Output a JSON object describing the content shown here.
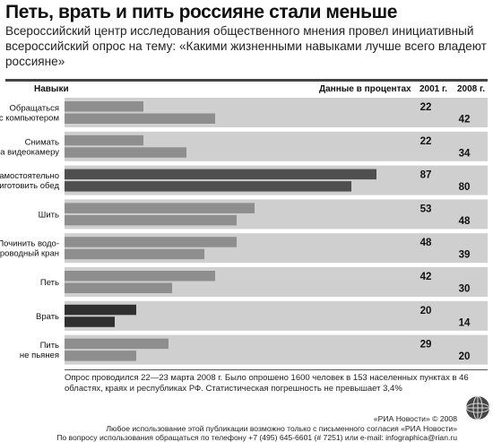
{
  "title": "Петь, врать и пить россияне стали меньше",
  "subtitle": "Всероссийский центр исследования общественного мнения провел инициативный всероссийский опрос на тему: «Какими жизненными навыками лучше всего владеют россияне»",
  "headers": {
    "skills": "Навыки",
    "data": "Данные в процентах",
    "year1": "2001 г.",
    "year2": "2008 г."
  },
  "chart_data": {
    "type": "bar",
    "orientation": "horizontal",
    "xlim": [
      0,
      100
    ],
    "categories": [
      [
        "Обращаться",
        "с компьютером"
      ],
      [
        "Снимать",
        "на видеокамеру"
      ],
      [
        "Самостоятельно",
        "приготовить обед"
      ],
      [
        "Шить"
      ],
      [
        "Починить водо-",
        "проводный кран"
      ],
      [
        "Петь"
      ],
      [
        "Врать"
      ],
      [
        "Пить",
        "не пьянея"
      ]
    ],
    "series": [
      {
        "name": "2001 г.",
        "values": [
          22,
          22,
          87,
          53,
          48,
          42,
          20,
          29
        ]
      },
      {
        "name": "2008 г.",
        "values": [
          42,
          34,
          80,
          48,
          39,
          30,
          14,
          20
        ]
      }
    ]
  },
  "colors": {
    "background_band": "#cfcfcf",
    "bar_default": "#8e8e8e",
    "bar_highlight_max": "#4f4f4f",
    "bar_highlight_min": "#2f2f2f"
  },
  "note": "Опрос проводился 22—23 марта 2008 г. Было опрошено 1600 человек в 153 населенных пунктах в 46 областях, краях и республиках РФ. Статистическая погрешность не превышает 3,4%",
  "credits": [
    "«РИА Новости» © 2008",
    "Любое использование этой публикации возможно только с письменного согласия «РИА Новости»",
    "По вопросу использования обращаться по телефону +7 (495) 645-6601 (# 7251) или e-mail: infographica@rian.ru"
  ],
  "logo_icon": "ria-novosti-globe-icon"
}
